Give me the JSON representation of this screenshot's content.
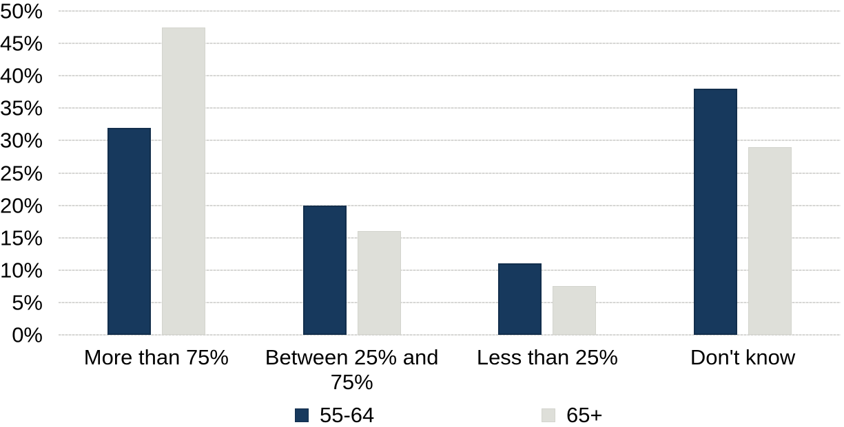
{
  "chart_data": {
    "type": "bar",
    "title": "",
    "xlabel": "",
    "ylabel": "",
    "categories": [
      "More than 75%",
      "Between 25% and 75%",
      "Less than 25%",
      "Don't know"
    ],
    "series": [
      {
        "name": "55-64",
        "color": "#17395d",
        "border_color": "#122e4c",
        "values": [
          32,
          20,
          11,
          38
        ]
      },
      {
        "name": "65+",
        "color": "#dedfd9",
        "border_color": "#d3d4cd",
        "values": [
          47.5,
          16,
          7.5,
          29
        ]
      }
    ],
    "ylim": [
      0,
      50
    ],
    "ytick_step": 5,
    "ytick_suffix": "%",
    "grid": true,
    "gridline_color": "#d9d9d9",
    "legend_position": "bottom",
    "background_color": "#ffffff",
    "text_color": "#000000"
  },
  "legend": {
    "items": [
      {
        "label": "55-64"
      },
      {
        "label": "65+"
      }
    ]
  }
}
